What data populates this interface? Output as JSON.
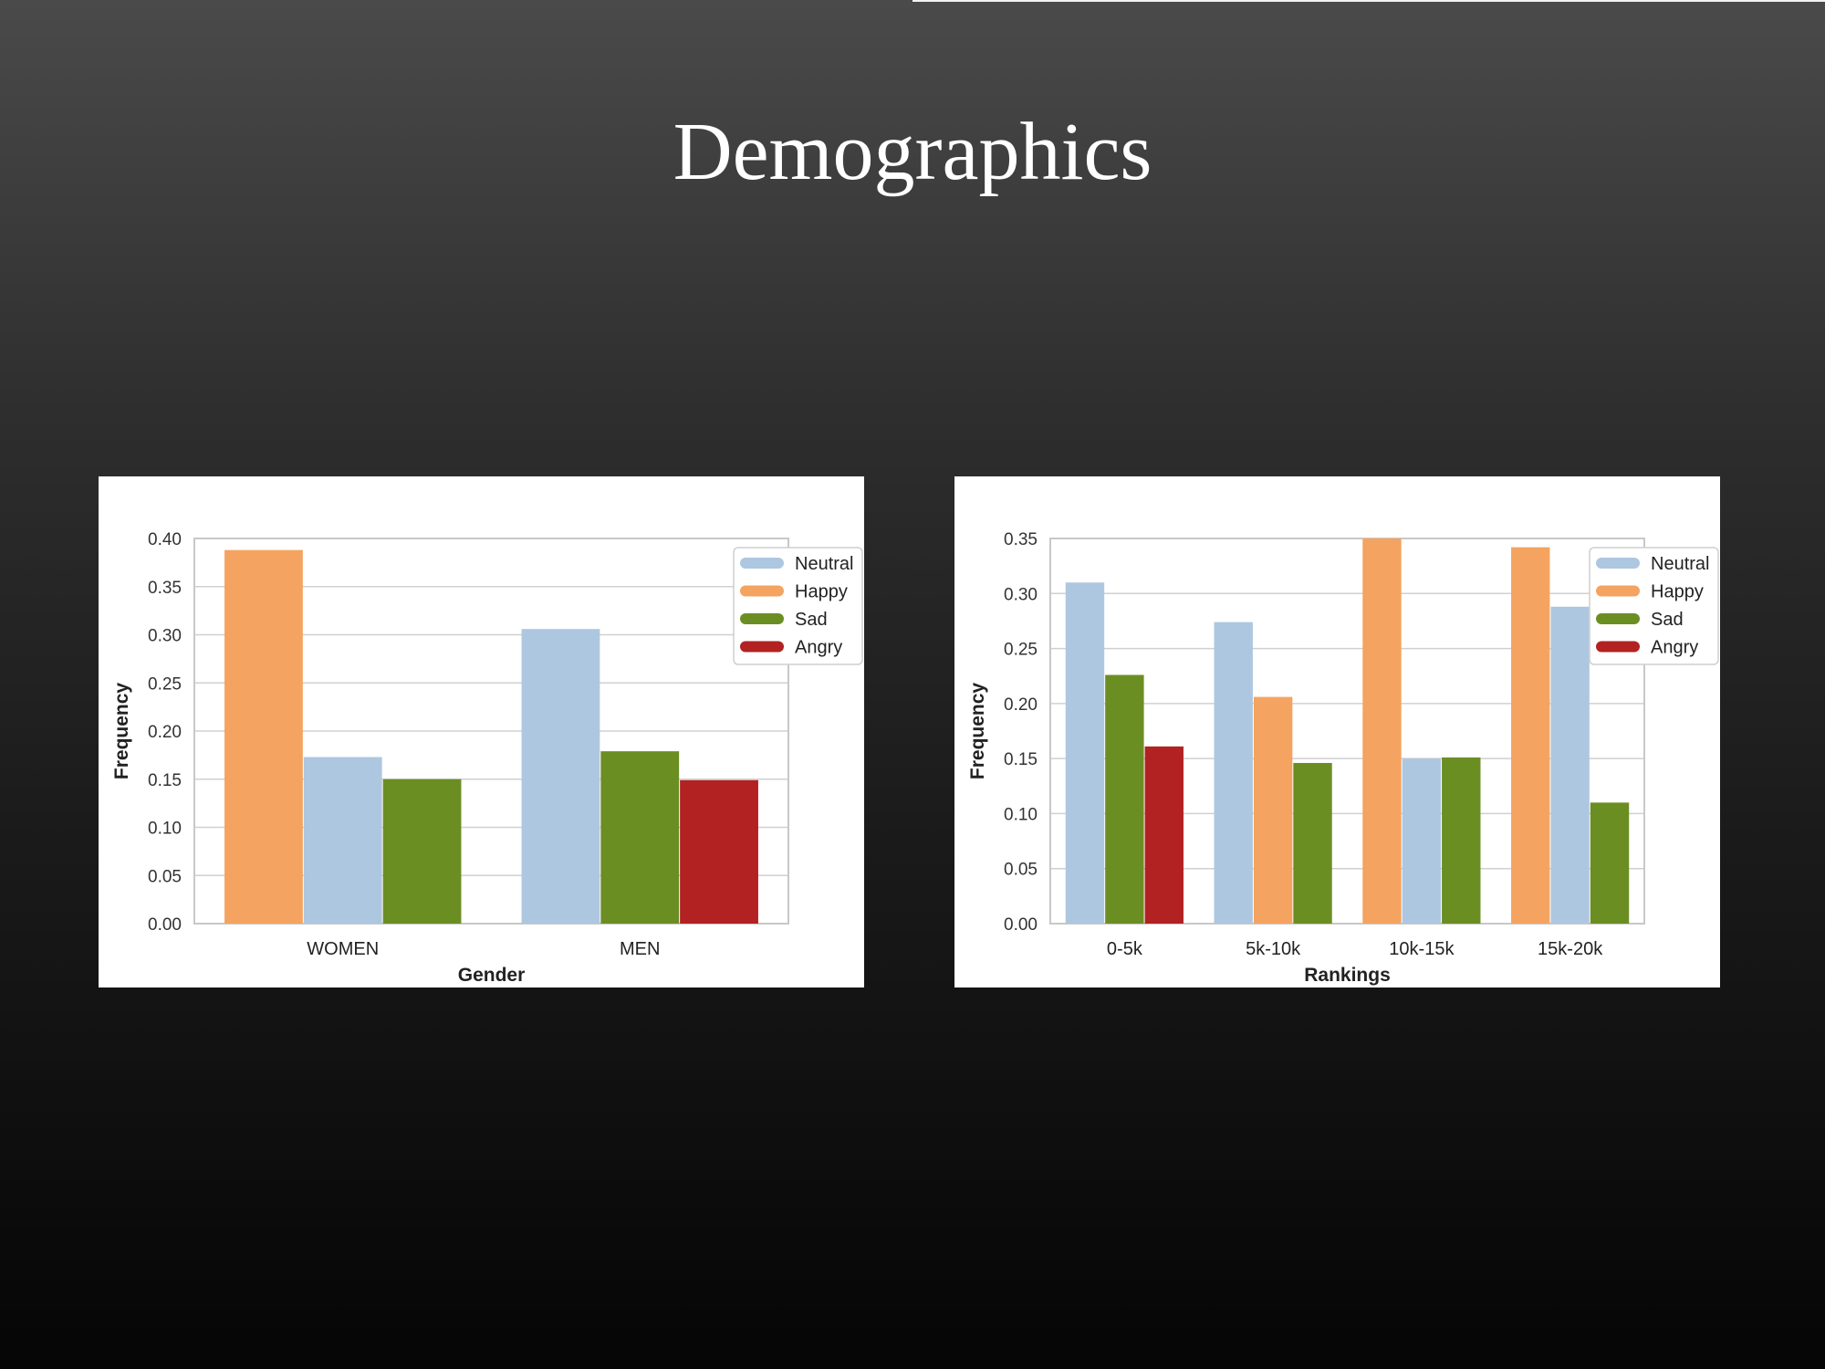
{
  "slide": {
    "title": "Demographics"
  },
  "legend": {
    "items": [
      {
        "label": "Neutral",
        "color": "#aec7e0"
      },
      {
        "label": "Happy",
        "color": "#f4a460"
      },
      {
        "label": "Sad",
        "color": "#6b8e23"
      },
      {
        "label": "Angry",
        "color": "#b22222"
      }
    ]
  },
  "chart_data": [
    {
      "type": "bar",
      "xlabel": "Gender",
      "ylabel": "Frequency",
      "ylim": [
        0,
        0.4
      ],
      "yticks": [
        0.0,
        0.05,
        0.1,
        0.15,
        0.2,
        0.25,
        0.3,
        0.35,
        0.4
      ],
      "ytick_decimals": 2,
      "categories": [
        "WOMEN",
        "MEN"
      ],
      "groups": [
        {
          "category": "WOMEN",
          "bars": [
            {
              "series": "Happy",
              "value": 0.388
            },
            {
              "series": "Neutral",
              "value": 0.173
            },
            {
              "series": "Sad",
              "value": 0.15
            }
          ]
        },
        {
          "category": "MEN",
          "bars": [
            {
              "series": "Neutral",
              "value": 0.306
            },
            {
              "series": "Sad",
              "value": 0.179
            },
            {
              "series": "Angry",
              "value": 0.149
            }
          ]
        }
      ],
      "grid": "horizontal",
      "legend_position": "top-right"
    },
    {
      "type": "bar",
      "xlabel": "Rankings",
      "ylabel": "Frequency",
      "ylim": [
        0,
        0.35
      ],
      "yticks": [
        0.0,
        0.05,
        0.1,
        0.15,
        0.2,
        0.25,
        0.3,
        0.35
      ],
      "ytick_decimals": 2,
      "categories": [
        "0-5k",
        "5k-10k",
        "10k-15k",
        "15k-20k"
      ],
      "groups": [
        {
          "category": "0-5k",
          "bars": [
            {
              "series": "Neutral",
              "value": 0.31
            },
            {
              "series": "Sad",
              "value": 0.226
            },
            {
              "series": "Angry",
              "value": 0.161
            }
          ]
        },
        {
          "category": "5k-10k",
          "bars": [
            {
              "series": "Neutral",
              "value": 0.274
            },
            {
              "series": "Happy",
              "value": 0.206
            },
            {
              "series": "Sad",
              "value": 0.146
            }
          ]
        },
        {
          "category": "10k-15k",
          "bars": [
            {
              "series": "Happy",
              "value": 0.35
            },
            {
              "series": "Neutral",
              "value": 0.15
            },
            {
              "series": "Sad",
              "value": 0.151
            }
          ]
        },
        {
          "category": "15k-20k",
          "bars": [
            {
              "series": "Happy",
              "value": 0.342
            },
            {
              "series": "Neutral",
              "value": 0.288
            },
            {
              "series": "Sad",
              "value": 0.11
            }
          ]
        }
      ],
      "grid": "horizontal",
      "legend_position": "top-right"
    }
  ]
}
